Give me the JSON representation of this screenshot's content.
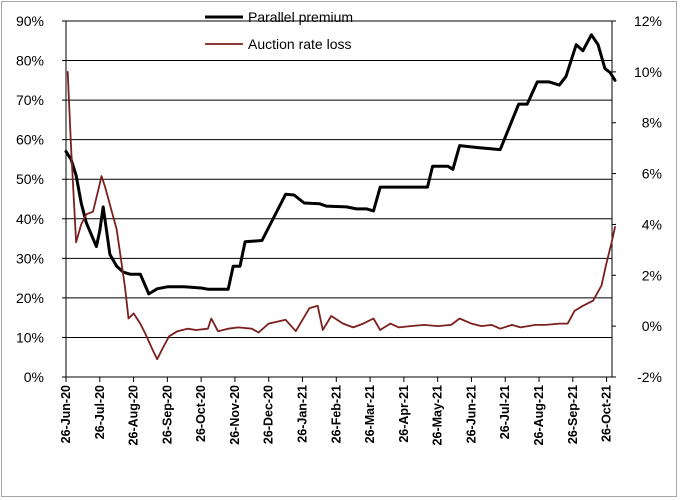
{
  "chart_data": {
    "type": "line",
    "title": "",
    "grid": true,
    "legend_position": "top",
    "x_categories": [
      "26-Jun-20",
      "26-Jul-20",
      "26-Aug-20",
      "26-Sep-20",
      "26-Oct-20",
      "26-Nov-20",
      "26-Dec-20",
      "26-Jan-21",
      "26-Feb-21",
      "26-Mar-21",
      "26-Apr-21",
      "26-May-21",
      "26-Jun-21",
      "26-Jul-21",
      "26-Aug-21",
      "26-Sep-21",
      "26-Oct-21"
    ],
    "y_left": {
      "range": [
        0,
        90
      ],
      "ticks": [
        0,
        10,
        20,
        30,
        40,
        50,
        60,
        70,
        80,
        90
      ],
      "tick_labels": [
        "0%",
        "10%",
        "20%",
        "30%",
        "40%",
        "50%",
        "60%",
        "70%",
        "80%",
        "90%"
      ]
    },
    "y_right": {
      "range": [
        -2,
        12
      ],
      "ticks": [
        -2,
        0,
        2,
        4,
        6,
        8,
        10,
        12
      ],
      "tick_labels": [
        "-2%",
        "0%",
        "2%",
        "4%",
        "6%",
        "8%",
        "10%",
        "12%"
      ]
    },
    "series": [
      {
        "name": "Parallel premium",
        "axis": "left",
        "color": "#000000",
        "points": [
          [
            0.0,
            57
          ],
          [
            0.15,
            55
          ],
          [
            0.3,
            51
          ],
          [
            0.45,
            44
          ],
          [
            0.6,
            39
          ],
          [
            0.8,
            35
          ],
          [
            0.9,
            33
          ],
          [
            1.0,
            37
          ],
          [
            1.1,
            43
          ],
          [
            1.3,
            31
          ],
          [
            1.5,
            28
          ],
          [
            1.7,
            26.5
          ],
          [
            1.9,
            26
          ],
          [
            2.2,
            26
          ],
          [
            2.45,
            21
          ],
          [
            2.7,
            22.3
          ],
          [
            3.0,
            22.8
          ],
          [
            3.5,
            22.8
          ],
          [
            4.0,
            22.5
          ],
          [
            4.2,
            22.2
          ],
          [
            4.8,
            22.2
          ],
          [
            4.95,
            28
          ],
          [
            5.15,
            28
          ],
          [
            5.3,
            34.2
          ],
          [
            5.8,
            34.5
          ],
          [
            6.5,
            46.2
          ],
          [
            6.75,
            46
          ],
          [
            7.05,
            44
          ],
          [
            7.5,
            43.8
          ],
          [
            7.7,
            43.2
          ],
          [
            8.3,
            43
          ],
          [
            8.6,
            42.5
          ],
          [
            8.9,
            42.5
          ],
          [
            9.1,
            42
          ],
          [
            9.3,
            48
          ],
          [
            10.7,
            48
          ],
          [
            10.85,
            53.3
          ],
          [
            11.3,
            53.3
          ],
          [
            11.45,
            52.5
          ],
          [
            11.65,
            58.5
          ],
          [
            12.2,
            58
          ],
          [
            12.85,
            57.5
          ],
          [
            13.4,
            69
          ],
          [
            13.65,
            69
          ],
          [
            13.95,
            74.6
          ],
          [
            14.3,
            74.6
          ],
          [
            14.6,
            73.8
          ],
          [
            14.8,
            76
          ],
          [
            15.1,
            84
          ],
          [
            15.3,
            82.5
          ],
          [
            15.55,
            86.5
          ],
          [
            15.75,
            84
          ],
          [
            15.95,
            78
          ],
          [
            16.1,
            77
          ],
          [
            16.25,
            75
          ]
        ]
      },
      {
        "name": "Auction rate loss",
        "axis": "right",
        "color": "#7b1f1f",
        "points": [
          [
            0.05,
            10
          ],
          [
            0.15,
            7
          ],
          [
            0.3,
            3.3
          ],
          [
            0.45,
            4
          ],
          [
            0.6,
            4.4
          ],
          [
            0.8,
            4.5
          ],
          [
            1.0,
            5.6
          ],
          [
            1.05,
            5.9
          ],
          [
            1.15,
            5.5
          ],
          [
            1.5,
            3.8
          ],
          [
            1.75,
            1.5
          ],
          [
            1.85,
            0.3
          ],
          [
            2.0,
            0.5
          ],
          [
            2.2,
            0.1
          ],
          [
            2.35,
            -0.3
          ],
          [
            2.55,
            -0.9
          ],
          [
            2.7,
            -1.3
          ],
          [
            2.85,
            -0.9
          ],
          [
            3.05,
            -0.4
          ],
          [
            3.3,
            -0.2
          ],
          [
            3.6,
            -0.1
          ],
          [
            3.85,
            -0.15
          ],
          [
            4.2,
            -0.1
          ],
          [
            4.3,
            0.3
          ],
          [
            4.5,
            -0.2
          ],
          [
            4.8,
            -0.1
          ],
          [
            5.1,
            -0.05
          ],
          [
            5.5,
            -0.1
          ],
          [
            5.7,
            -0.25
          ],
          [
            6.0,
            0.1
          ],
          [
            6.5,
            0.25
          ],
          [
            6.8,
            -0.2
          ],
          [
            7.2,
            0.7
          ],
          [
            7.45,
            0.8
          ],
          [
            7.6,
            -0.15
          ],
          [
            7.85,
            0.4
          ],
          [
            8.2,
            0.1
          ],
          [
            8.5,
            -0.05
          ],
          [
            8.8,
            0.1
          ],
          [
            9.1,
            0.3
          ],
          [
            9.3,
            -0.15
          ],
          [
            9.6,
            0.1
          ],
          [
            9.85,
            -0.05
          ],
          [
            10.2,
            0.0
          ],
          [
            10.6,
            0.05
          ],
          [
            11.0,
            0.0
          ],
          [
            11.4,
            0.05
          ],
          [
            11.65,
            0.3
          ],
          [
            12.0,
            0.1
          ],
          [
            12.3,
            0.0
          ],
          [
            12.6,
            0.05
          ],
          [
            12.85,
            -0.1
          ],
          [
            13.2,
            0.05
          ],
          [
            13.45,
            -0.05
          ],
          [
            13.9,
            0.05
          ],
          [
            14.2,
            0.05
          ],
          [
            14.6,
            0.1
          ],
          [
            14.85,
            0.1
          ],
          [
            15.05,
            0.6
          ],
          [
            15.3,
            0.8
          ],
          [
            15.6,
            1.0
          ],
          [
            15.85,
            1.6
          ],
          [
            16.0,
            2.5
          ],
          [
            16.15,
            3.3
          ],
          [
            16.25,
            3.9
          ]
        ]
      }
    ]
  }
}
